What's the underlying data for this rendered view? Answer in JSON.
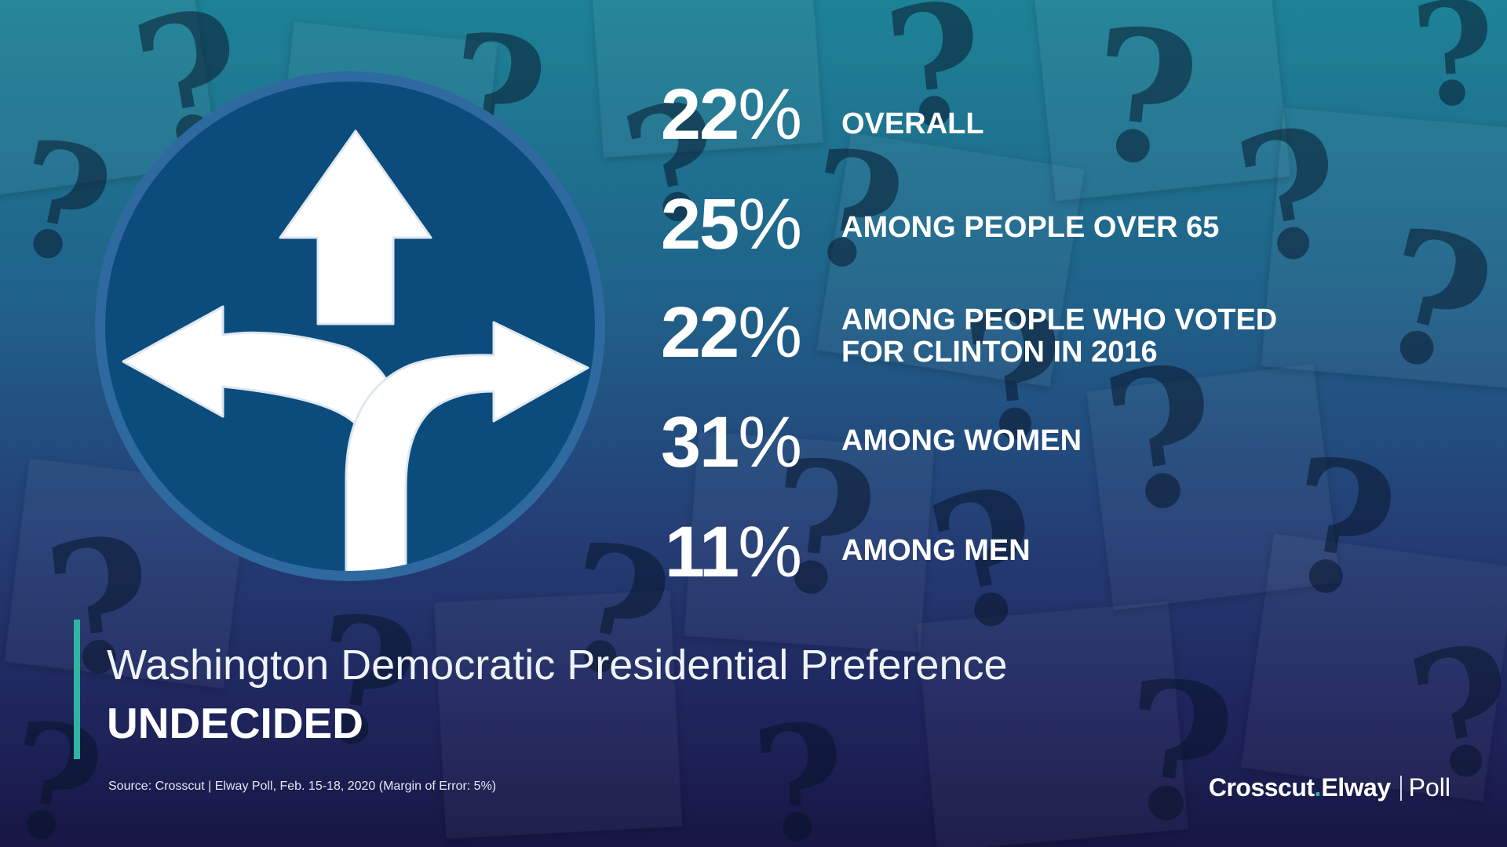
{
  "background": {
    "description_icon": "question-marks-paper-background",
    "palette": {
      "top": "#1f8fa0",
      "bottom": "#1c1a4e"
    }
  },
  "icon": {
    "name": "three-way-direction-arrows-icon",
    "circle_fill": "#0b4c7c",
    "ring_fill": "#2e6aa0"
  },
  "stats": [
    {
      "value": "22",
      "symbol": "%",
      "label": "OVERALL"
    },
    {
      "value": "25",
      "symbol": "%",
      "label": "AMONG PEOPLE OVER 65"
    },
    {
      "value": "22",
      "symbol": "%",
      "label": "AMONG PEOPLE WHO VOTED\nFOR CLINTON IN 2016"
    },
    {
      "value": "31",
      "symbol": "%",
      "label": "AMONG WOMEN"
    },
    {
      "value": "11",
      "symbol": "%",
      "label": "AMONG MEN"
    }
  ],
  "title": "Washington Democratic Presidential Preference",
  "subtitle": "UNDECIDED",
  "source": "Source: Crosscut | Elway Poll, Feb. 15-18, 2020 (Margin of Error: 5%)",
  "brand": {
    "part1": "Crosscut",
    "dot": ".",
    "part2": "Elway",
    "part3": "Poll"
  },
  "accent": "#2fb6a0"
}
